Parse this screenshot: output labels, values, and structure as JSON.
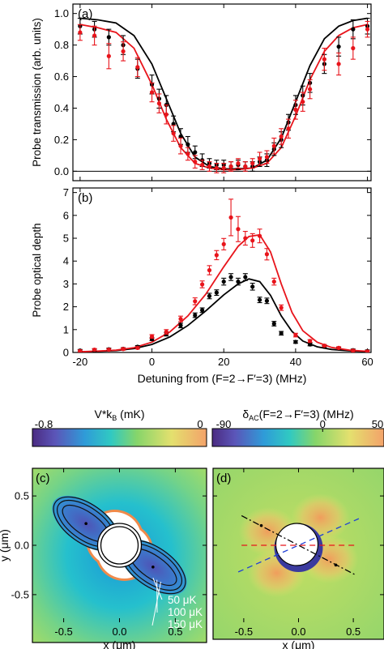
{
  "colors": {
    "black_series": "#000000",
    "red_series": "#e8141b"
  },
  "chart_data": [
    {
      "panel": "(a)",
      "type": "scatter",
      "ylabel": "Probe transmission (arb. units)",
      "xlim": [
        -22,
        61
      ],
      "ylim": [
        -0.06,
        1.06
      ],
      "xticks": [
        -20,
        0,
        20,
        40,
        60
      ],
      "yticks": [
        0.0,
        0.2,
        0.4,
        0.6,
        0.8,
        1.0
      ],
      "ytick_labels": [
        "0.0",
        "0.2",
        "0.4",
        "0.6",
        "0.8",
        "1.0"
      ],
      "hline": 0.0,
      "series": [
        {
          "color": "#000000",
          "points": [
            [
              -20,
              0.92,
              0.05
            ],
            [
              -16,
              0.9,
              0.05
            ],
            [
              -12,
              0.85,
              0.05
            ],
            [
              -8,
              0.8,
              0.06
            ],
            [
              -4,
              0.65,
              0.06
            ],
            [
              0,
              0.55,
              0.06
            ],
            [
              2,
              0.46,
              0.06
            ],
            [
              4,
              0.42,
              0.06
            ],
            [
              6,
              0.3,
              0.05
            ],
            [
              8,
              0.22,
              0.05
            ],
            [
              10,
              0.17,
              0.05
            ],
            [
              12,
              0.12,
              0.04
            ],
            [
              14,
              0.07,
              0.04
            ],
            [
              16,
              0.05,
              0.03
            ],
            [
              18,
              0.04,
              0.03
            ],
            [
              20,
              0.04,
              0.03
            ],
            [
              22,
              0.03,
              0.03
            ],
            [
              24,
              0.04,
              0.03
            ],
            [
              26,
              0.03,
              0.03
            ],
            [
              28,
              0.03,
              0.03
            ],
            [
              30,
              0.06,
              0.03
            ],
            [
              32,
              0.07,
              0.04
            ],
            [
              34,
              0.14,
              0.04
            ],
            [
              36,
              0.2,
              0.05
            ],
            [
              38,
              0.31,
              0.05
            ],
            [
              40,
              0.42,
              0.06
            ],
            [
              42,
              0.48,
              0.06
            ],
            [
              44,
              0.56,
              0.06
            ],
            [
              48,
              0.68,
              0.06
            ],
            [
              52,
              0.79,
              0.06
            ],
            [
              56,
              0.9,
              0.06
            ],
            [
              60,
              0.92,
              0.05
            ]
          ]
        },
        {
          "color": "#e8141b",
          "points": [
            [
              -20,
              0.88,
              0.05
            ],
            [
              -16,
              0.86,
              0.06
            ],
            [
              -12,
              0.73,
              0.08
            ],
            [
              -8,
              0.76,
              0.06
            ],
            [
              -4,
              0.66,
              0.06
            ],
            [
              0,
              0.5,
              0.06
            ],
            [
              2,
              0.43,
              0.06
            ],
            [
              4,
              0.36,
              0.06
            ],
            [
              6,
              0.24,
              0.05
            ],
            [
              8,
              0.16,
              0.05
            ],
            [
              10,
              0.11,
              0.04
            ],
            [
              12,
              0.06,
              0.04
            ],
            [
              14,
              0.04,
              0.03
            ],
            [
              16,
              0.03,
              0.03
            ],
            [
              18,
              0.02,
              0.03
            ],
            [
              20,
              0.02,
              0.03
            ],
            [
              22,
              0.03,
              0.03
            ],
            [
              24,
              0.05,
              0.03
            ],
            [
              26,
              0.03,
              0.03
            ],
            [
              28,
              0.05,
              0.03
            ],
            [
              30,
              0.08,
              0.04
            ],
            [
              32,
              0.09,
              0.04
            ],
            [
              34,
              0.16,
              0.05
            ],
            [
              36,
              0.22,
              0.05
            ],
            [
              38,
              0.27,
              0.06
            ],
            [
              40,
              0.39,
              0.06
            ],
            [
              42,
              0.44,
              0.06
            ],
            [
              44,
              0.52,
              0.06
            ],
            [
              48,
              0.71,
              0.07
            ],
            [
              52,
              0.68,
              0.07
            ],
            [
              56,
              0.78,
              0.07
            ],
            [
              60,
              0.9,
              0.05
            ]
          ]
        }
      ],
      "curves": [
        {
          "color": "#000000",
          "points": [
            [
              -20,
              0.97
            ],
            [
              -15,
              0.96
            ],
            [
              -10,
              0.94
            ],
            [
              -5,
              0.86
            ],
            [
              0,
              0.68
            ],
            [
              4,
              0.46
            ],
            [
              8,
              0.24
            ],
            [
              12,
              0.09
            ],
            [
              16,
              0.03
            ],
            [
              20,
              0.015
            ],
            [
              24,
              0.015
            ],
            [
              28,
              0.02
            ],
            [
              32,
              0.07
            ],
            [
              36,
              0.21
            ],
            [
              40,
              0.44
            ],
            [
              44,
              0.67
            ],
            [
              48,
              0.84
            ],
            [
              52,
              0.92
            ],
            [
              56,
              0.955
            ],
            [
              60,
              0.97
            ]
          ]
        },
        {
          "color": "#e8141b",
          "points": [
            [
              -20,
              0.93
            ],
            [
              -15,
              0.91
            ],
            [
              -10,
              0.88
            ],
            [
              -5,
              0.78
            ],
            [
              0,
              0.55
            ],
            [
              4,
              0.33
            ],
            [
              8,
              0.15
            ],
            [
              12,
              0.05
            ],
            [
              16,
              0.02
            ],
            [
              20,
              0.01
            ],
            [
              24,
              0.01
            ],
            [
              28,
              0.02
            ],
            [
              32,
              0.05
            ],
            [
              36,
              0.15
            ],
            [
              40,
              0.35
            ],
            [
              44,
              0.58
            ],
            [
              48,
              0.76
            ],
            [
              52,
              0.86
            ],
            [
              56,
              0.91
            ],
            [
              60,
              0.93
            ]
          ]
        }
      ]
    },
    {
      "panel": "(b)",
      "type": "scatter",
      "ylabel": "Probe optical depth",
      "xlabel": "Detuning from (F=2→F′=3) (MHz)",
      "xlim": [
        -22,
        61
      ],
      "ylim": [
        0,
        7.2
      ],
      "xticks": [
        -20,
        0,
        20,
        40,
        60
      ],
      "xtick_labels": [
        "-20",
        "0",
        "20",
        "40",
        "60"
      ],
      "yticks": [
        0,
        1,
        2,
        3,
        4,
        5,
        6,
        7
      ],
      "ytick_labels": [
        "0",
        "1",
        "2",
        "3",
        "4",
        "5",
        "6",
        "7"
      ],
      "series": [
        {
          "color": "#000000",
          "points": [
            [
              -20,
              0.08,
              0.05
            ],
            [
              -16,
              0.1,
              0.05
            ],
            [
              -12,
              0.14,
              0.05
            ],
            [
              -8,
              0.16,
              0.05
            ],
            [
              -4,
              0.25,
              0.05
            ],
            [
              0,
              0.58,
              0.06
            ],
            [
              4,
              0.8,
              0.08
            ],
            [
              8,
              1.18,
              0.1
            ],
            [
              12,
              1.63,
              0.1
            ],
            [
              14,
              1.85,
              0.1
            ],
            [
              16,
              2.47,
              0.12
            ],
            [
              18,
              2.62,
              0.12
            ],
            [
              20,
              3.1,
              0.15
            ],
            [
              22,
              3.3,
              0.15
            ],
            [
              24,
              3.1,
              0.15
            ],
            [
              26,
              3.3,
              0.15
            ],
            [
              28,
              2.88,
              0.15
            ],
            [
              30,
              2.3,
              0.12
            ],
            [
              32,
              2.26,
              0.12
            ],
            [
              34,
              1.26,
              0.1
            ],
            [
              36,
              0.84,
              0.08
            ],
            [
              40,
              0.46,
              0.06
            ],
            [
              44,
              0.35,
              0.06
            ],
            [
              48,
              0.25,
              0.05
            ],
            [
              52,
              0.17,
              0.05
            ],
            [
              56,
              0.1,
              0.05
            ],
            [
              60,
              0.06,
              0.05
            ]
          ]
        },
        {
          "color": "#e8141b",
          "points": [
            [
              -20,
              0.06,
              0.05
            ],
            [
              -16,
              0.12,
              0.05
            ],
            [
              -12,
              0.12,
              0.05
            ],
            [
              -8,
              0.15,
              0.05
            ],
            [
              -4,
              0.2,
              0.05
            ],
            [
              0,
              0.7,
              0.08
            ],
            [
              4,
              0.9,
              0.1
            ],
            [
              8,
              1.47,
              0.12
            ],
            [
              12,
              2.24,
              0.15
            ],
            [
              14,
              2.98,
              0.15
            ],
            [
              16,
              3.6,
              0.2
            ],
            [
              18,
              4.26,
              0.2
            ],
            [
              20,
              4.74,
              0.25
            ],
            [
              22,
              5.91,
              0.8
            ],
            [
              24,
              5.4,
              0.55
            ],
            [
              26,
              5.0,
              0.3
            ],
            [
              28,
              4.9,
              0.3
            ],
            [
              30,
              5.1,
              0.3
            ],
            [
              32,
              4.3,
              0.25
            ],
            [
              34,
              3.1,
              0.15
            ],
            [
              36,
              1.96,
              0.12
            ],
            [
              40,
              0.76,
              0.08
            ],
            [
              44,
              0.5,
              0.06
            ],
            [
              48,
              0.3,
              0.05
            ],
            [
              52,
              0.2,
              0.05
            ],
            [
              56,
              0.08,
              0.05
            ],
            [
              60,
              0.04,
              0.05
            ]
          ]
        }
      ],
      "curves": [
        {
          "color": "#000000",
          "points": [
            [
              -20,
              0.03
            ],
            [
              -15,
              0.05
            ],
            [
              -10,
              0.08
            ],
            [
              -5,
              0.17
            ],
            [
              0,
              0.35
            ],
            [
              5,
              0.68
            ],
            [
              10,
              1.18
            ],
            [
              15,
              1.82
            ],
            [
              20,
              2.52
            ],
            [
              24,
              3.0
            ],
            [
              27,
              3.22
            ],
            [
              30,
              3.1
            ],
            [
              33,
              2.5
            ],
            [
              36,
              1.6
            ],
            [
              39,
              0.92
            ],
            [
              42,
              0.5
            ],
            [
              46,
              0.25
            ],
            [
              50,
              0.13
            ],
            [
              55,
              0.07
            ],
            [
              60,
              0.04
            ]
          ]
        },
        {
          "color": "#e8141b",
          "points": [
            [
              -20,
              0.03
            ],
            [
              -15,
              0.06
            ],
            [
              -10,
              0.1
            ],
            [
              -5,
              0.21
            ],
            [
              0,
              0.45
            ],
            [
              5,
              0.9
            ],
            [
              10,
              1.6
            ],
            [
              15,
              2.55
            ],
            [
              20,
              3.75
            ],
            [
              24,
              4.65
            ],
            [
              27,
              5.08
            ],
            [
              30,
              5.15
            ],
            [
              33,
              4.4
            ],
            [
              36,
              3.0
            ],
            [
              39,
              1.75
            ],
            [
              42,
              0.95
            ],
            [
              46,
              0.45
            ],
            [
              50,
              0.22
            ],
            [
              55,
              0.1
            ],
            [
              60,
              0.05
            ]
          ]
        }
      ]
    },
    {
      "panel": "(c)",
      "type": "heatmap",
      "colorbar_label": "V*k",
      "colorbar_label_sub": "B",
      "colorbar_unit": " (mK)",
      "colorbar_range": [
        -0.8,
        0
      ],
      "colorbar_ticks": [
        "-0.8",
        "0"
      ],
      "xlabel": "x (μm)",
      "ylabel": "y (μm)",
      "xlim": [
        -0.78,
        0.78
      ],
      "ylim": [
        -0.78,
        0.78
      ],
      "xticks": [
        -0.5,
        0.0,
        0.5
      ],
      "xtick_labels": [
        "-0.5",
        "0.0",
        "0.5"
      ],
      "yticks": [
        -0.5,
        0.0,
        0.5
      ],
      "ytick_labels": [
        "-0.5",
        "0.0",
        "0.5"
      ],
      "contours": [
        "50 μK",
        "100 μK",
        "150 μK"
      ]
    },
    {
      "panel": "(d)",
      "type": "heatmap",
      "colorbar_label": "δ",
      "colorbar_label_sub": "AC",
      "colorbar_unit": "(F=2→F′=3) (MHz)",
      "colorbar_range": [
        -90,
        50
      ],
      "colorbar_ticks": [
        "-90",
        "0",
        "50"
      ],
      "xlabel": "x (μm)",
      "xlim": [
        -0.78,
        0.78
      ],
      "ylim": [
        -0.78,
        0.78
      ],
      "xticks": [
        -0.5,
        0.0,
        0.5
      ],
      "xtick_labels": [
        "-0.5",
        "0.0",
        "0.5"
      ],
      "yticks": [
        -0.5,
        0.0,
        0.5
      ]
    }
  ]
}
